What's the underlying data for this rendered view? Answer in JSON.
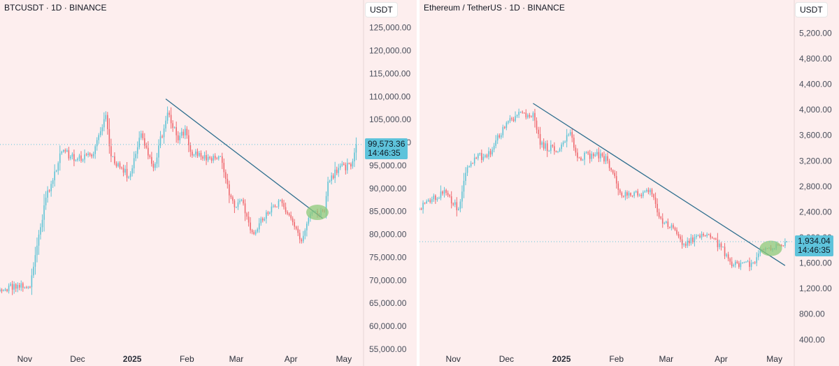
{
  "chart_data": [
    {
      "type": "candlestick",
      "title": "BTCUSDT · 1D · BINANCE",
      "currency": "USDT",
      "ylim": [
        55000,
        128000
      ],
      "yticks": [
        {
          "value": 55000,
          "label": "55,000.00"
        },
        {
          "value": 60000,
          "label": "60,000.00"
        },
        {
          "value": 65000,
          "label": "65,000.00"
        },
        {
          "value": 70000,
          "label": "70,000.00"
        },
        {
          "value": 75000,
          "label": "75,000.00"
        },
        {
          "value": 80000,
          "label": "80,000.00"
        },
        {
          "value": 85000,
          "label": "85,000.00"
        },
        {
          "value": 90000,
          "label": "90,000.00"
        },
        {
          "value": 95000,
          "label": "95,000.00"
        },
        {
          "value": 100000,
          "label": "100,000.00"
        },
        {
          "value": 105000,
          "label": "105,000.00"
        },
        {
          "value": 110000,
          "label": "110,000.00"
        },
        {
          "value": 115000,
          "label": "115,000.00"
        },
        {
          "value": 120000,
          "label": "120,000.00"
        },
        {
          "value": 125000,
          "label": "125,000.00"
        }
      ],
      "x_range": [
        "2024-10-18",
        "2025-05-11"
      ],
      "xticks": [
        {
          "date": "2024-11-01",
          "label": "Nov",
          "bold": false
        },
        {
          "date": "2024-12-01",
          "label": "Dec",
          "bold": false
        },
        {
          "date": "2025-01-01",
          "label": "2025",
          "bold": true
        },
        {
          "date": "2025-02-01",
          "label": "Feb",
          "bold": false
        },
        {
          "date": "2025-03-01",
          "label": "Mar",
          "bold": false
        },
        {
          "date": "2025-04-01",
          "label": "Apr",
          "bold": false
        },
        {
          "date": "2025-05-01",
          "label": "May",
          "bold": false
        }
      ],
      "anchors": [
        [
          "2024-10-18",
          68000
        ],
        [
          "2024-10-28",
          69000
        ],
        [
          "2024-11-04",
          68500
        ],
        [
          "2024-11-07",
          75500
        ],
        [
          "2024-11-13",
          88000
        ],
        [
          "2024-11-22",
          98000
        ],
        [
          "2024-12-01",
          96500
        ],
        [
          "2024-12-09",
          97000
        ],
        [
          "2024-12-17",
          106000
        ],
        [
          "2024-12-20",
          97000
        ],
        [
          "2024-12-30",
          92500
        ],
        [
          "2025-01-06",
          102000
        ],
        [
          "2025-01-13",
          94500
        ],
        [
          "2025-01-21",
          106500
        ],
        [
          "2025-01-27",
          100500
        ],
        [
          "2025-01-31",
          103000
        ],
        [
          "2025-02-03",
          98000
        ],
        [
          "2025-02-10",
          96500
        ],
        [
          "2025-02-20",
          97000
        ],
        [
          "2025-02-25",
          88500
        ],
        [
          "2025-03-01",
          86000
        ],
        [
          "2025-03-04",
          87500
        ],
        [
          "2025-03-10",
          80500
        ],
        [
          "2025-03-19",
          84500
        ],
        [
          "2025-03-26",
          87500
        ],
        [
          "2025-04-01",
          83500
        ],
        [
          "2025-04-07",
          78500
        ],
        [
          "2025-04-12",
          84500
        ],
        [
          "2025-04-20",
          85000
        ],
        [
          "2025-04-22",
          91500
        ],
        [
          "2025-04-28",
          94500
        ],
        [
          "2025-05-05",
          94800
        ],
        [
          "2025-05-08",
          99573
        ]
      ],
      "trendline": [
        [
          "2025-01-20",
          109500
        ],
        [
          "2025-04-19",
          83500
        ]
      ],
      "highlight": {
        "date": "2025-04-16",
        "value": 84800
      },
      "last_price": {
        "value": 99573.36,
        "label": "99,573.36",
        "countdown": "14:46:35"
      },
      "colors": {
        "up": "#5fc4d6",
        "down": "#ef6a70",
        "trend": "#2e6e8e",
        "highlight": "#8cc97a",
        "label_bg": "#5ec3db"
      }
    },
    {
      "type": "candlestick",
      "title": "Ethereum / TetherUS · 1D · BINANCE",
      "currency": "USDT",
      "ylim": [
        250,
        5500
      ],
      "yticks": [
        {
          "value": 400,
          "label": "400.00"
        },
        {
          "value": 800,
          "label": "800.00"
        },
        {
          "value": 1200,
          "label": "1,200.00"
        },
        {
          "value": 1600,
          "label": "1,600.00"
        },
        {
          "value": 2000,
          "label": "2,000.00"
        },
        {
          "value": 2400,
          "label": "2,400.00"
        },
        {
          "value": 2800,
          "label": "2,800.00"
        },
        {
          "value": 3200,
          "label": "3,200.00"
        },
        {
          "value": 3600,
          "label": "3,600.00"
        },
        {
          "value": 4000,
          "label": "4,000.00"
        },
        {
          "value": 4400,
          "label": "4,400.00"
        },
        {
          "value": 4800,
          "label": "4,800.00"
        },
        {
          "value": 5200,
          "label": "5,200.00"
        }
      ],
      "x_range": [
        "2024-10-13",
        "2025-05-11"
      ],
      "xticks": [
        {
          "date": "2024-11-01",
          "label": "Nov",
          "bold": false
        },
        {
          "date": "2024-12-01",
          "label": "Dec",
          "bold": false
        },
        {
          "date": "2025-01-01",
          "label": "2025",
          "bold": true
        },
        {
          "date": "2025-02-01",
          "label": "Feb",
          "bold": false
        },
        {
          "date": "2025-03-01",
          "label": "Mar",
          "bold": false
        },
        {
          "date": "2025-04-01",
          "label": "Apr",
          "bold": false
        },
        {
          "date": "2025-05-01",
          "label": "May",
          "bold": false
        }
      ],
      "anchors": [
        [
          "2024-10-13",
          2450
        ],
        [
          "2024-10-20",
          2600
        ],
        [
          "2024-10-28",
          2700
        ],
        [
          "2024-11-04",
          2450
        ],
        [
          "2024-11-09",
          3100
        ],
        [
          "2024-11-13",
          3250
        ],
        [
          "2024-11-22",
          3300
        ],
        [
          "2024-11-26",
          3600
        ],
        [
          "2024-12-06",
          3900
        ],
        [
          "2024-12-16",
          3950
        ],
        [
          "2024-12-20",
          3450
        ],
        [
          "2024-12-30",
          3350
        ],
        [
          "2025-01-06",
          3650
        ],
        [
          "2025-01-10",
          3250
        ],
        [
          "2025-01-20",
          3300
        ],
        [
          "2025-01-27",
          3200
        ],
        [
          "2025-02-03",
          2700
        ],
        [
          "2025-02-10",
          2650
        ],
        [
          "2025-02-20",
          2750
        ],
        [
          "2025-02-26",
          2300
        ],
        [
          "2025-03-05",
          2150
        ],
        [
          "2025-03-11",
          1900
        ],
        [
          "2025-03-20",
          2000
        ],
        [
          "2025-03-26",
          2000
        ],
        [
          "2025-04-01",
          1850
        ],
        [
          "2025-04-07",
          1550
        ],
        [
          "2025-04-12",
          1600
        ],
        [
          "2025-04-20",
          1600
        ],
        [
          "2025-04-23",
          1800
        ],
        [
          "2025-05-01",
          1830
        ],
        [
          "2025-05-08",
          1934
        ]
      ],
      "trendline": [
        [
          "2024-12-16",
          4100
        ],
        [
          "2025-05-07",
          1560
        ]
      ],
      "highlight": {
        "date": "2025-04-29",
        "value": 1830
      },
      "last_price": {
        "value": 1934.04,
        "label": "1,934.04",
        "countdown": "14:46:35"
      },
      "colors": {
        "up": "#5fc4d6",
        "down": "#ef6a70",
        "trend": "#2e6e8e",
        "highlight": "#8cc97a",
        "label_bg": "#5ec3db"
      }
    }
  ]
}
